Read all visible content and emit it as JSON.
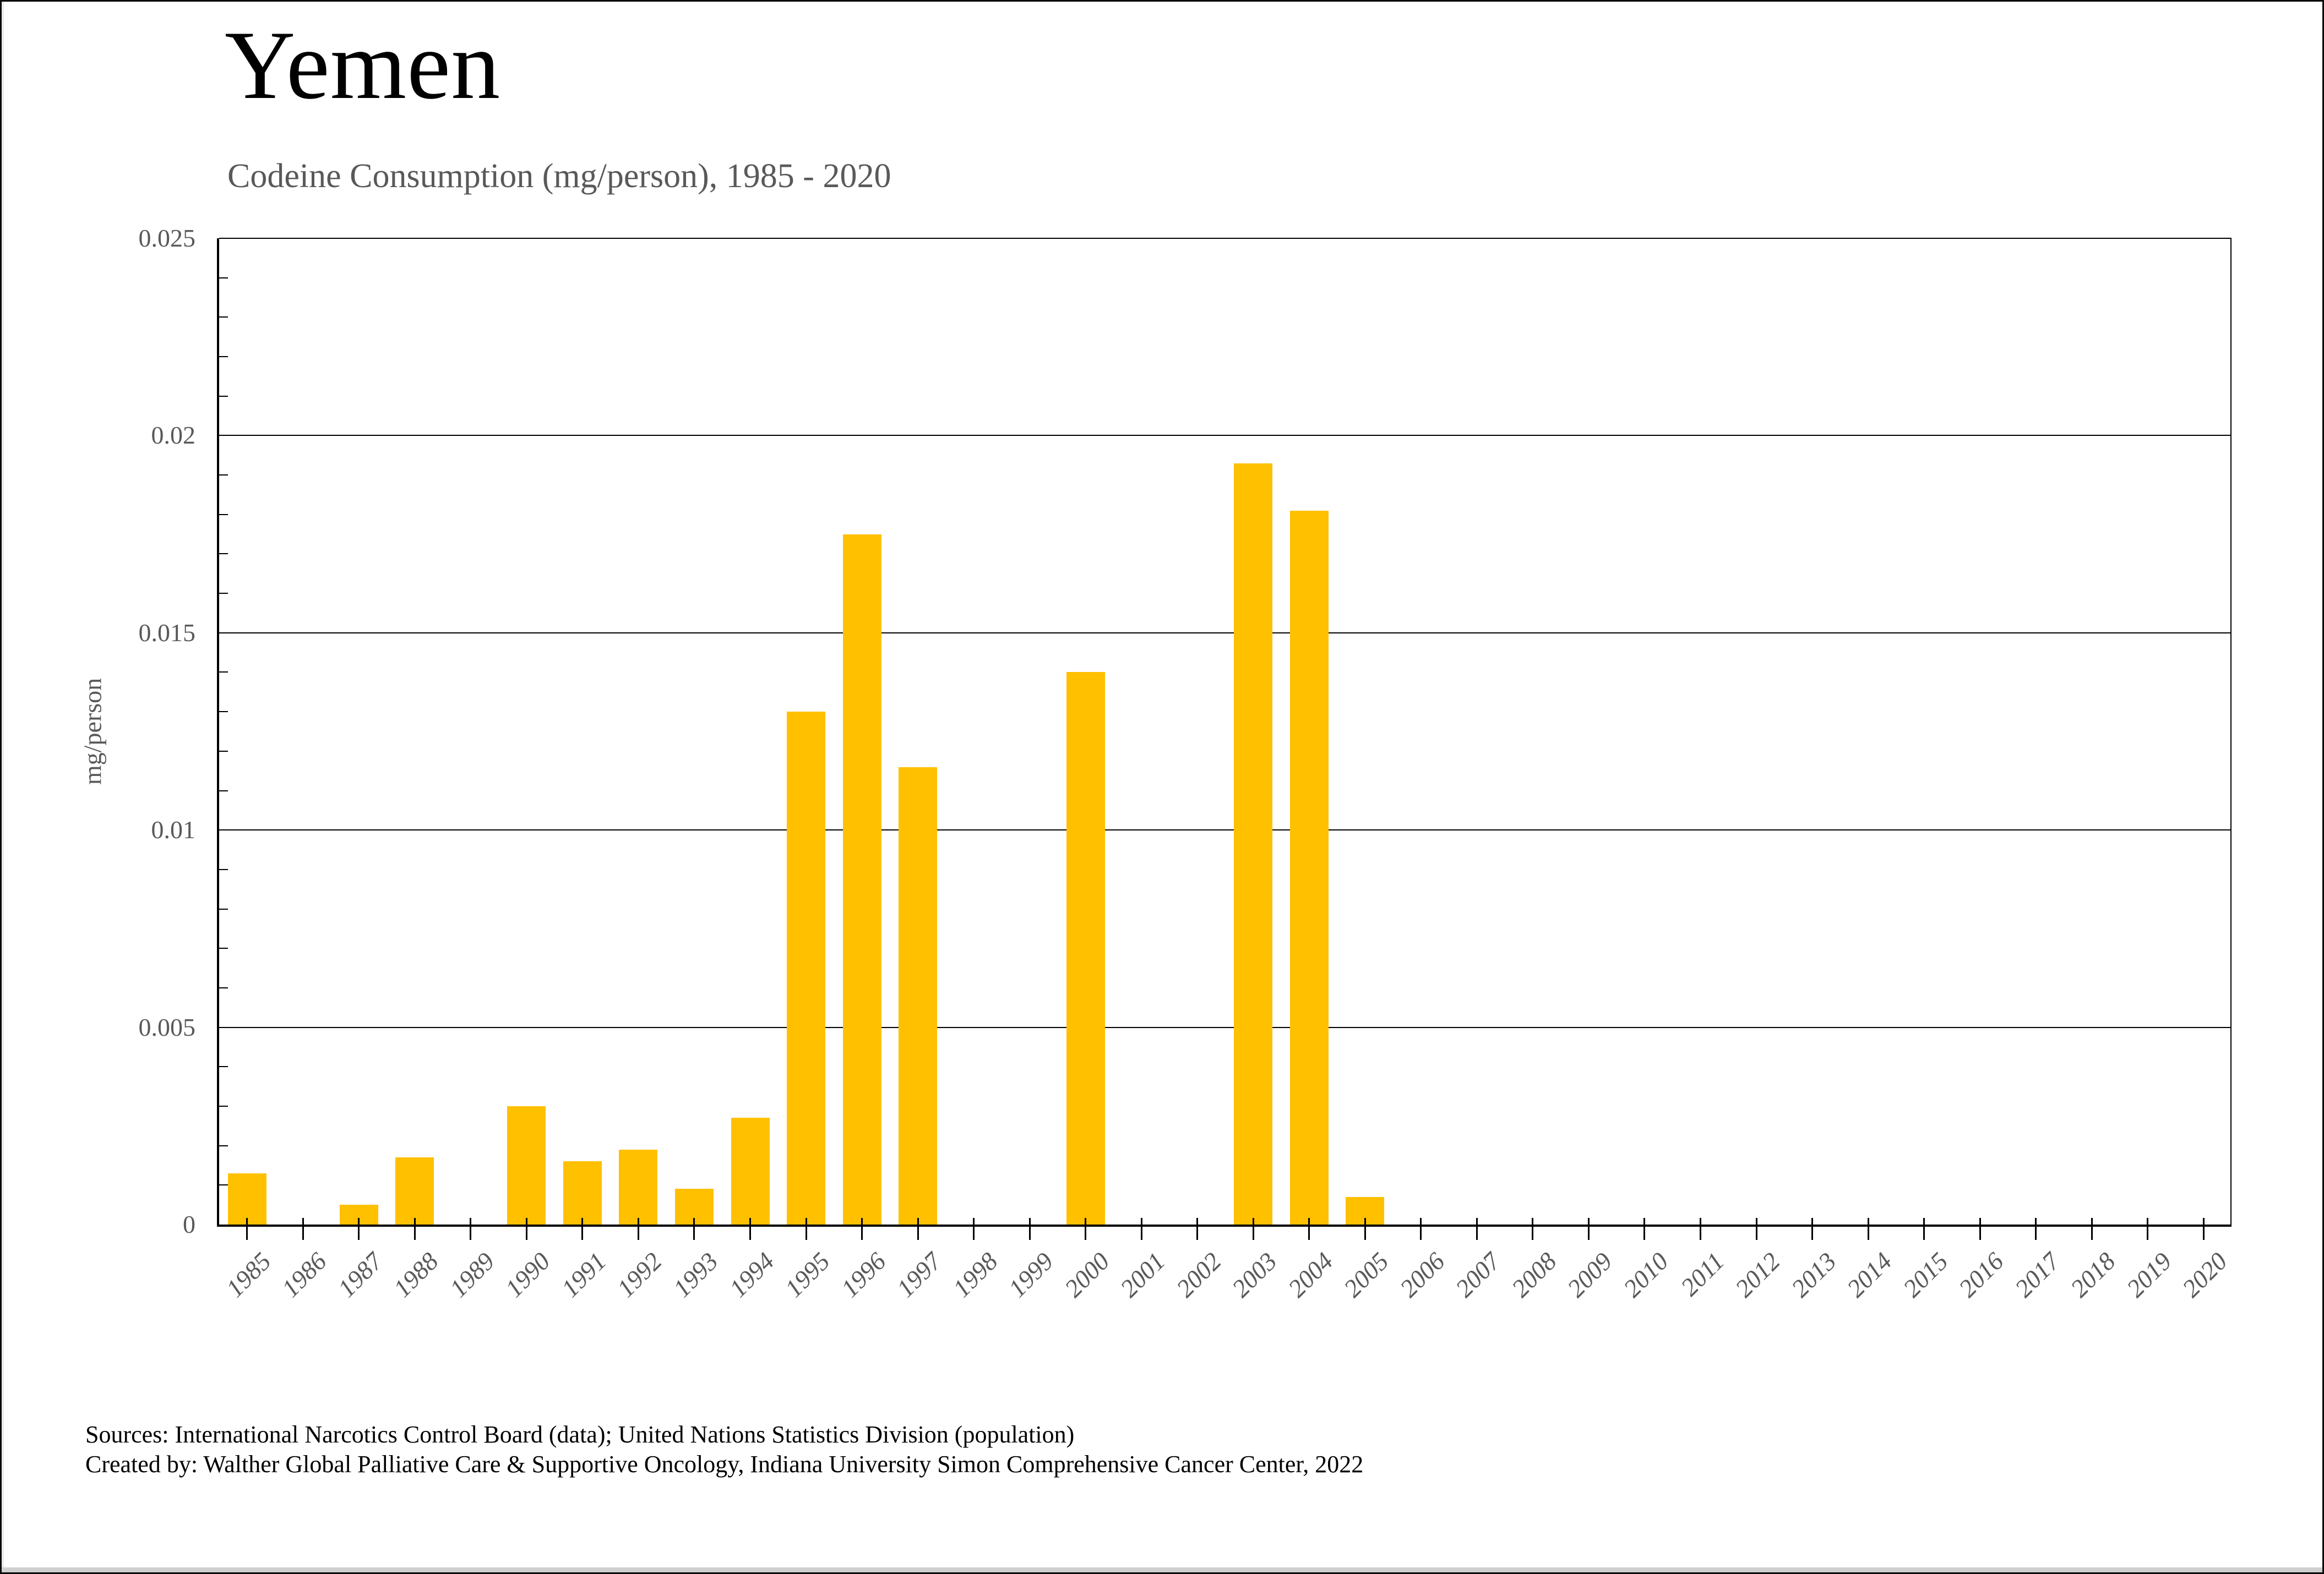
{
  "header": {
    "title": "Yemen",
    "subtitle": "Codeine Consumption (mg/person), 1985 - 2020"
  },
  "footer": {
    "line1": "Sources: International Narcotics Control Board (data); United Nations Statistics Division (population)",
    "line2": "Created by: Walther Global Palliative Care & Supportive Oncology, Indiana University Simon Comprehensive Cancer Center, 2022"
  },
  "colors": {
    "bar": "#FFC000",
    "gridline": "#000000",
    "axis_text": "#595959",
    "title_text": "#000000"
  },
  "chart_data": {
    "type": "bar",
    "title": "Yemen",
    "subtitle": "Codeine Consumption (mg/person), 1985 - 2020",
    "xlabel": "",
    "ylabel": "mg/person",
    "ylim": [
      0,
      0.025
    ],
    "y_major_step": 0.005,
    "y_minor_step": 0.001,
    "y_tick_labels": [
      "0",
      "0.005",
      "0.01",
      "0.015",
      "0.02",
      "0.025"
    ],
    "grid": true,
    "legend": "none",
    "bar_color": "#FFC000",
    "categories": [
      "1985",
      "1986",
      "1987",
      "1988",
      "1989",
      "1990",
      "1991",
      "1992",
      "1993",
      "1994",
      "1995",
      "1996",
      "1997",
      "1998",
      "1999",
      "2000",
      "2001",
      "2002",
      "2003",
      "2004",
      "2005",
      "2006",
      "2007",
      "2008",
      "2009",
      "2010",
      "2011",
      "2012",
      "2013",
      "2014",
      "2015",
      "2016",
      "2017",
      "2018",
      "2019",
      "2020"
    ],
    "values": [
      0.0013,
      0,
      0.0005,
      0.0017,
      0,
      0.003,
      0.0016,
      0.0019,
      0.0009,
      0.0027,
      0.013,
      0.0175,
      0.0116,
      0,
      0,
      0.014,
      0,
      0,
      0.0193,
      0.0181,
      0.0007,
      0,
      0,
      0,
      0,
      0,
      0,
      0,
      0,
      0,
      0,
      0,
      0,
      0,
      0,
      0
    ]
  }
}
